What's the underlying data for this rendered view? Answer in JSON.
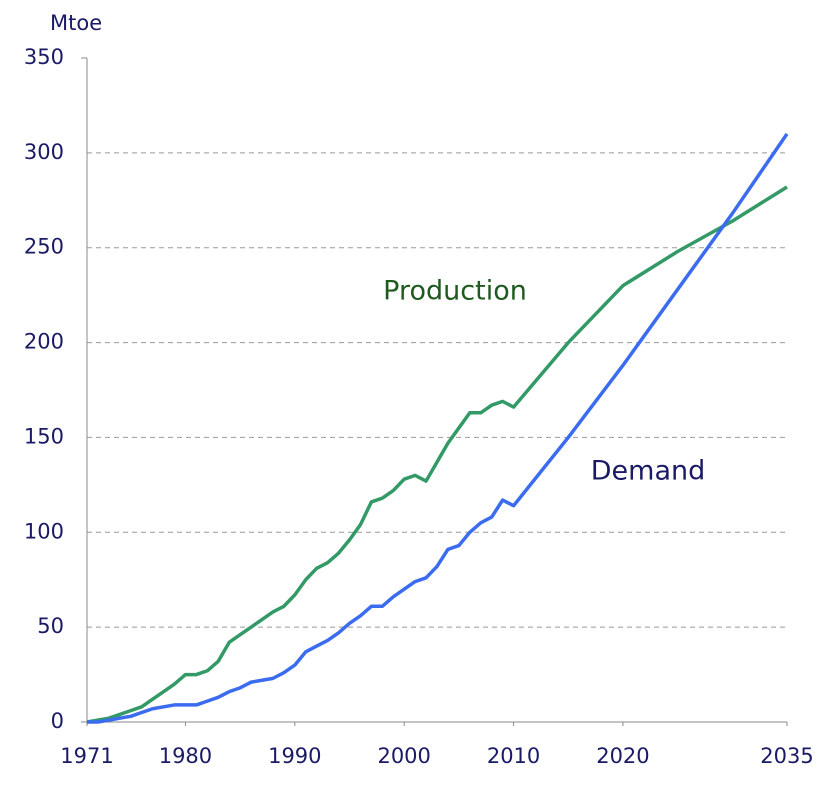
{
  "chart_data": {
    "type": "line",
    "ylabel": "Mtoe",
    "annotations": [
      {
        "text": "Production"
      },
      {
        "text": "Demand"
      }
    ],
    "x": [
      1971,
      1972,
      1973,
      1974,
      1975,
      1976,
      1977,
      1978,
      1979,
      1980,
      1981,
      1982,
      1983,
      1984,
      1985,
      1986,
      1987,
      1988,
      1989,
      1990,
      1991,
      1992,
      1993,
      1994,
      1995,
      1996,
      1997,
      1998,
      1999,
      2000,
      2001,
      2002,
      2003,
      2004,
      2005,
      2006,
      2007,
      2008,
      2009,
      2010,
      2015,
      2020,
      2025,
      2030,
      2035
    ],
    "series": [
      {
        "name": "Production",
        "color": "#339966",
        "values": [
          0,
          1,
          2,
          4,
          6,
          8,
          12,
          16,
          20,
          25,
          25,
          27,
          32,
          42,
          46,
          50,
          54,
          58,
          61,
          67,
          75,
          81,
          84,
          89,
          96,
          104,
          116,
          118,
          122,
          128,
          130,
          127,
          137,
          147,
          155,
          163,
          163,
          167,
          169,
          166,
          200,
          230,
          248,
          264,
          282
        ]
      },
      {
        "name": "Demand",
        "color": "#3b6cf0",
        "values": [
          0,
          0,
          1,
          2,
          3,
          5,
          7,
          8,
          9,
          9,
          9,
          11,
          13,
          16,
          18,
          21,
          22,
          23,
          26,
          30,
          37,
          40,
          43,
          47,
          52,
          56,
          61,
          61,
          66,
          70,
          74,
          76,
          82,
          91,
          93,
          100,
          105,
          108,
          117,
          114,
          150,
          188,
          228,
          268,
          310
        ]
      }
    ],
    "xlim": [
      1971,
      2035
    ],
    "xticks": [
      1971,
      1980,
      1990,
      2000,
      2010,
      2020,
      2035
    ],
    "ylim": [
      0,
      350
    ],
    "yticks": [
      0,
      50,
      100,
      150,
      200,
      250,
      300,
      350
    ],
    "grid": true
  }
}
